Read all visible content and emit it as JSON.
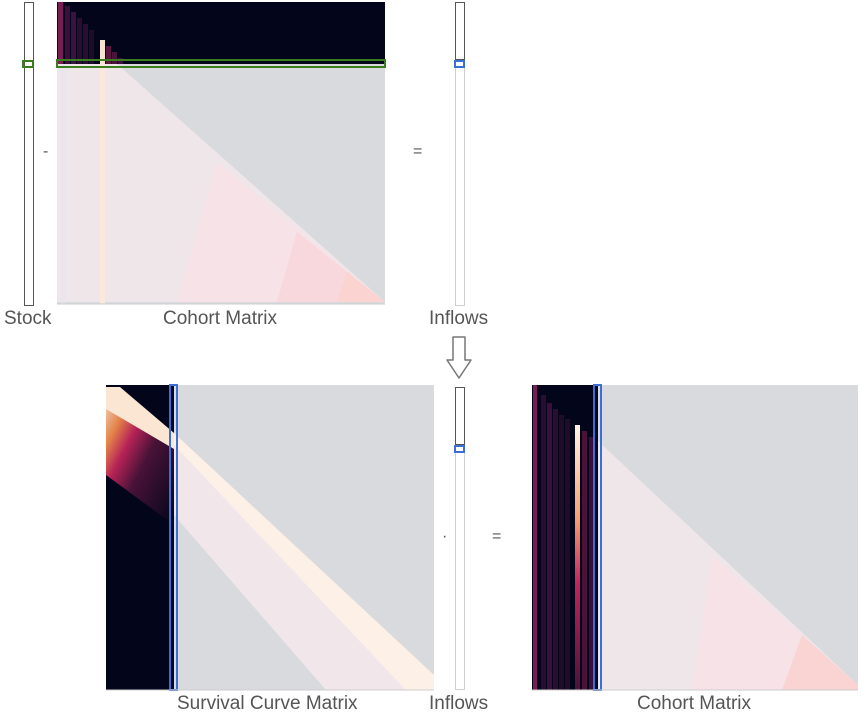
{
  "labels": {
    "stock": "Stock",
    "cohort_matrix_top": "Cohort Matrix",
    "inflows_top": "Inflows",
    "survival_curve_matrix": "Survival Curve Matrix",
    "inflows_bottom": "Inflows",
    "cohort_matrix_bottom": "Cohort Matrix"
  },
  "operators": {
    "minus": "-",
    "equals_top": "=",
    "dot": "·",
    "equals_bottom": "="
  },
  "colors": {
    "stock_highlight": "#3a7d1f",
    "inflow_highlight": "#3b6fd8",
    "matrix_empty": "#d9dadd",
    "matrix_dark": "#03051a",
    "vector_border": "#555555",
    "arrow_fill": "#ffffff",
    "arrow_stroke": "#777777"
  },
  "icons": {
    "flow_arrow": "down-arrow-icon"
  }
}
